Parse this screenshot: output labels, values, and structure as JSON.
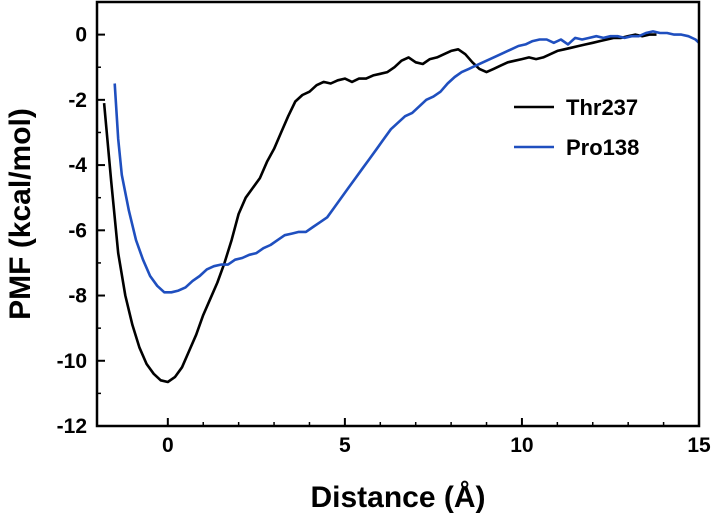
{
  "chart_data": {
    "type": "line",
    "xlabel": "Distance (Å)",
    "ylabel": "PMF (kcal/mol)",
    "xlim": [
      -2,
      15
    ],
    "ylim": [
      -12,
      1
    ],
    "xticks": [
      0,
      5,
      10,
      15
    ],
    "yticks": [
      0,
      -2,
      -4,
      -6,
      -8,
      -10,
      -12
    ],
    "grid": false,
    "legend_position": "top-right",
    "series": [
      {
        "name": "Thr237",
        "color": "#000000",
        "points": [
          [
            -1.8,
            -2.1
          ],
          [
            -1.6,
            -4.5
          ],
          [
            -1.4,
            -6.7
          ],
          [
            -1.2,
            -8.0
          ],
          [
            -1.0,
            -8.9
          ],
          [
            -0.8,
            -9.6
          ],
          [
            -0.6,
            -10.1
          ],
          [
            -0.4,
            -10.4
          ],
          [
            -0.2,
            -10.6
          ],
          [
            0.0,
            -10.65
          ],
          [
            0.2,
            -10.5
          ],
          [
            0.4,
            -10.2
          ],
          [
            0.6,
            -9.7
          ],
          [
            0.8,
            -9.2
          ],
          [
            1.0,
            -8.6
          ],
          [
            1.2,
            -8.1
          ],
          [
            1.4,
            -7.6
          ],
          [
            1.6,
            -7.0
          ],
          [
            1.8,
            -6.3
          ],
          [
            2.0,
            -5.5
          ],
          [
            2.2,
            -5.0
          ],
          [
            2.4,
            -4.7
          ],
          [
            2.6,
            -4.4
          ],
          [
            2.8,
            -3.9
          ],
          [
            3.0,
            -3.5
          ],
          [
            3.2,
            -3.0
          ],
          [
            3.4,
            -2.5
          ],
          [
            3.6,
            -2.05
          ],
          [
            3.8,
            -1.85
          ],
          [
            4.0,
            -1.75
          ],
          [
            4.2,
            -1.55
          ],
          [
            4.4,
            -1.45
          ],
          [
            4.6,
            -1.5
          ],
          [
            4.8,
            -1.4
          ],
          [
            5.0,
            -1.35
          ],
          [
            5.2,
            -1.45
          ],
          [
            5.4,
            -1.35
          ],
          [
            5.6,
            -1.35
          ],
          [
            5.8,
            -1.25
          ],
          [
            6.0,
            -1.2
          ],
          [
            6.2,
            -1.15
          ],
          [
            6.4,
            -1.0
          ],
          [
            6.6,
            -0.8
          ],
          [
            6.8,
            -0.7
          ],
          [
            7.0,
            -0.85
          ],
          [
            7.2,
            -0.9
          ],
          [
            7.4,
            -0.75
          ],
          [
            7.6,
            -0.7
          ],
          [
            7.8,
            -0.6
          ],
          [
            8.0,
            -0.5
          ],
          [
            8.2,
            -0.45
          ],
          [
            8.4,
            -0.6
          ],
          [
            8.6,
            -0.85
          ],
          [
            8.8,
            -1.05
          ],
          [
            9.0,
            -1.15
          ],
          [
            9.2,
            -1.05
          ],
          [
            9.4,
            -0.95
          ],
          [
            9.6,
            -0.85
          ],
          [
            9.8,
            -0.8
          ],
          [
            10.0,
            -0.75
          ],
          [
            10.2,
            -0.7
          ],
          [
            10.4,
            -0.75
          ],
          [
            10.6,
            -0.7
          ],
          [
            10.8,
            -0.6
          ],
          [
            11.0,
            -0.5
          ],
          [
            11.2,
            -0.45
          ],
          [
            11.4,
            -0.4
          ],
          [
            11.6,
            -0.35
          ],
          [
            11.8,
            -0.3
          ],
          [
            12.0,
            -0.25
          ],
          [
            12.2,
            -0.2
          ],
          [
            12.4,
            -0.15
          ],
          [
            12.6,
            -0.1
          ],
          [
            12.8,
            -0.1
          ],
          [
            13.0,
            -0.05
          ],
          [
            13.2,
            0.0
          ],
          [
            13.4,
            -0.05
          ],
          [
            13.6,
            0.0
          ],
          [
            13.8,
            0.0
          ]
        ]
      },
      {
        "name": "Pro138",
        "color": "#1f4fbf",
        "points": [
          [
            -1.5,
            -1.5
          ],
          [
            -1.4,
            -3.2
          ],
          [
            -1.3,
            -4.3
          ],
          [
            -1.1,
            -5.4
          ],
          [
            -0.9,
            -6.3
          ],
          [
            -0.7,
            -6.9
          ],
          [
            -0.5,
            -7.4
          ],
          [
            -0.3,
            -7.7
          ],
          [
            -0.1,
            -7.9
          ],
          [
            0.1,
            -7.9
          ],
          [
            0.3,
            -7.85
          ],
          [
            0.5,
            -7.75
          ],
          [
            0.7,
            -7.55
          ],
          [
            0.9,
            -7.4
          ],
          [
            1.1,
            -7.2
          ],
          [
            1.3,
            -7.1
          ],
          [
            1.5,
            -7.05
          ],
          [
            1.7,
            -7.05
          ],
          [
            1.9,
            -6.9
          ],
          [
            2.1,
            -6.85
          ],
          [
            2.3,
            -6.75
          ],
          [
            2.5,
            -6.7
          ],
          [
            2.7,
            -6.55
          ],
          [
            2.9,
            -6.45
          ],
          [
            3.1,
            -6.3
          ],
          [
            3.3,
            -6.15
          ],
          [
            3.5,
            -6.1
          ],
          [
            3.7,
            -6.05
          ],
          [
            3.9,
            -6.05
          ],
          [
            4.1,
            -5.9
          ],
          [
            4.3,
            -5.75
          ],
          [
            4.5,
            -5.6
          ],
          [
            4.7,
            -5.3
          ],
          [
            4.9,
            -5.0
          ],
          [
            5.1,
            -4.7
          ],
          [
            5.3,
            -4.4
          ],
          [
            5.5,
            -4.1
          ],
          [
            5.7,
            -3.8
          ],
          [
            5.9,
            -3.5
          ],
          [
            6.1,
            -3.2
          ],
          [
            6.3,
            -2.9
          ],
          [
            6.5,
            -2.7
          ],
          [
            6.7,
            -2.5
          ],
          [
            6.9,
            -2.4
          ],
          [
            7.1,
            -2.2
          ],
          [
            7.3,
            -2.0
          ],
          [
            7.5,
            -1.9
          ],
          [
            7.7,
            -1.75
          ],
          [
            7.9,
            -1.5
          ],
          [
            8.1,
            -1.3
          ],
          [
            8.3,
            -1.15
          ],
          [
            8.5,
            -1.05
          ],
          [
            8.7,
            -0.95
          ],
          [
            8.9,
            -0.85
          ],
          [
            9.1,
            -0.75
          ],
          [
            9.3,
            -0.65
          ],
          [
            9.5,
            -0.55
          ],
          [
            9.7,
            -0.45
          ],
          [
            9.9,
            -0.35
          ],
          [
            10.1,
            -0.3
          ],
          [
            10.3,
            -0.2
          ],
          [
            10.5,
            -0.15
          ],
          [
            10.7,
            -0.15
          ],
          [
            10.9,
            -0.25
          ],
          [
            11.1,
            -0.15
          ],
          [
            11.3,
            -0.3
          ],
          [
            11.5,
            -0.1
          ],
          [
            11.7,
            -0.15
          ],
          [
            11.9,
            -0.1
          ],
          [
            12.1,
            -0.05
          ],
          [
            12.3,
            -0.1
          ],
          [
            12.5,
            -0.05
          ],
          [
            12.7,
            -0.05
          ],
          [
            12.9,
            -0.1
          ],
          [
            13.1,
            -0.05
          ],
          [
            13.3,
            -0.05
          ],
          [
            13.5,
            0.05
          ],
          [
            13.7,
            0.1
          ],
          [
            13.9,
            0.05
          ],
          [
            14.1,
            0.05
          ],
          [
            14.3,
            0.0
          ],
          [
            14.5,
            0.0
          ],
          [
            14.7,
            -0.05
          ],
          [
            14.9,
            -0.15
          ],
          [
            15.0,
            -0.25
          ]
        ]
      }
    ]
  }
}
